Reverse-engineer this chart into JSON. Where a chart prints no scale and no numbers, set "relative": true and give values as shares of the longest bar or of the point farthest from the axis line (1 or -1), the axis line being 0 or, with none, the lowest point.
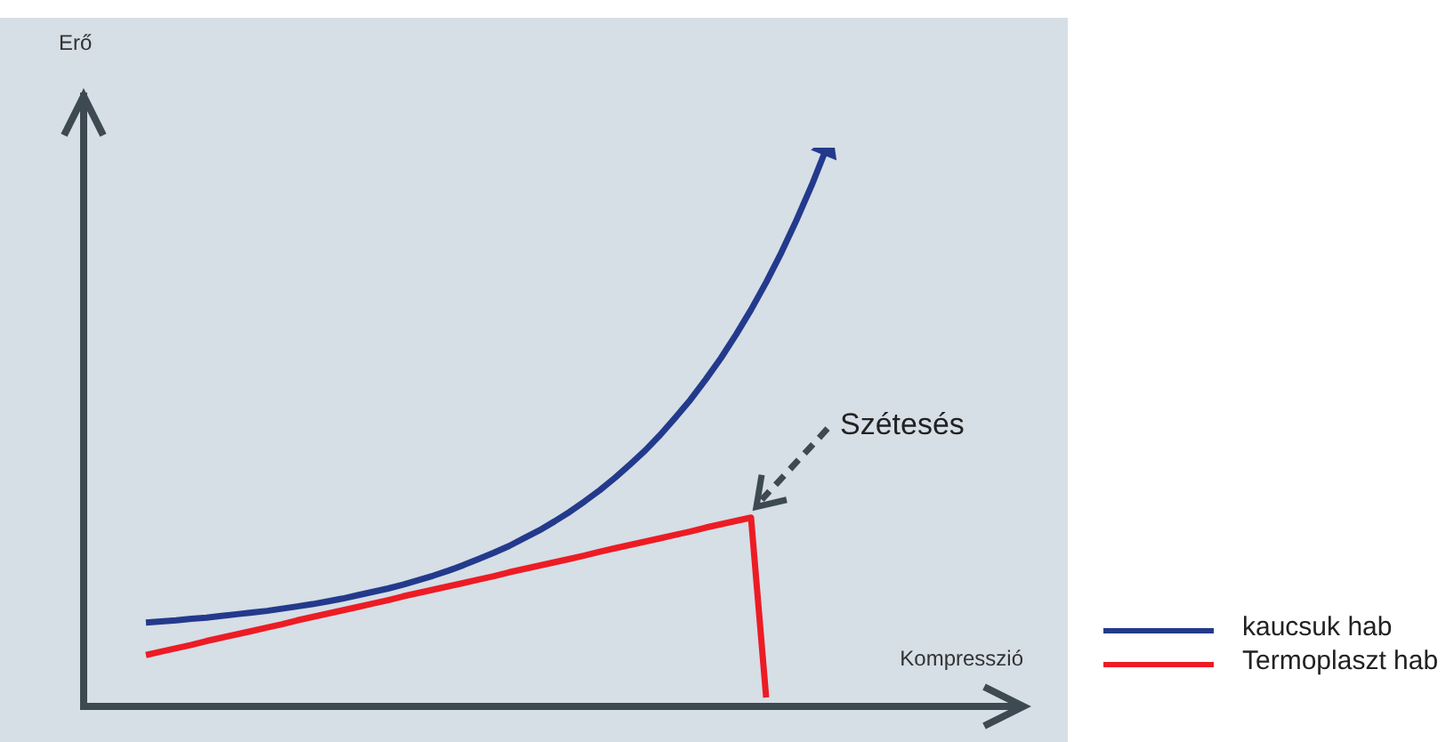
{
  "chart_data": {
    "type": "line",
    "relative": true,
    "xlabel": "Kompresszió",
    "ylabel": "Erő",
    "categories": [
      null,
      null,
      null,
      null,
      null,
      null,
      null,
      null,
      null,
      null,
      null,
      null,
      null,
      null,
      null,
      null,
      null,
      null,
      null,
      null,
      null,
      null,
      null,
      null,
      null,
      null,
      null,
      null,
      null,
      null,
      null,
      null,
      null,
      null,
      null,
      null,
      null,
      null,
      null,
      null,
      null,
      null,
      null,
      null,
      null,
      null
    ],
    "legend": "right",
    "series": [
      {
        "name": "kaucsuk hab",
        "color": "#233a8c",
        "values": [
          0.15,
          0.152,
          0.154,
          0.157,
          0.159,
          0.162,
          0.165,
          0.168,
          0.171,
          0.175,
          0.179,
          0.183,
          0.188,
          0.193,
          0.199,
          0.205,
          0.211,
          0.218,
          0.226,
          0.234,
          0.243,
          0.253,
          0.264,
          0.275,
          0.287,
          0.301,
          0.315,
          0.331,
          0.348,
          0.367,
          0.387,
          0.409,
          0.433,
          0.458,
          0.486,
          0.517,
          0.549,
          0.585,
          0.623,
          0.665,
          0.71,
          0.759,
          0.812,
          0.87,
          0.932,
          1
        ]
      },
      {
        "name": "Termoplaszt hab",
        "color": "#ec1c24",
        "values": [
          0.092,
          0.098,
          0.104,
          0.11,
          0.117,
          0.123,
          0.129,
          0.135,
          0.141,
          0.147,
          0.154,
          0.16,
          0.166,
          0.172,
          0.178,
          0.184,
          0.19,
          0.197,
          0.203,
          0.209,
          0.215,
          0.221,
          0.227,
          0.233,
          0.24,
          0.246,
          0.252,
          0.258,
          0.264,
          0.27,
          0.277,
          0.283,
          0.289,
          0.295,
          0.301,
          0.307,
          0.313,
          0.32,
          0.326,
          0.332,
          0.338,
          0.016,
          null,
          null,
          null,
          null
        ]
      }
    ],
    "annotations": [
      "Szétesés"
    ]
  }
}
